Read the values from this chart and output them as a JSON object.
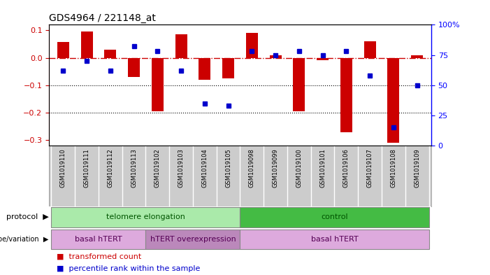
{
  "title": "GDS4964 / 221148_at",
  "samples": [
    "GSM1019110",
    "GSM1019111",
    "GSM1019112",
    "GSM1019113",
    "GSM1019102",
    "GSM1019103",
    "GSM1019104",
    "GSM1019105",
    "GSM1019098",
    "GSM1019099",
    "GSM1019100",
    "GSM1019101",
    "GSM1019106",
    "GSM1019107",
    "GSM1019108",
    "GSM1019109"
  ],
  "bar_values": [
    0.058,
    0.095,
    0.03,
    -0.07,
    -0.195,
    0.085,
    -0.08,
    -0.075,
    0.09,
    0.01,
    -0.195,
    -0.01,
    -0.27,
    0.06,
    -0.31,
    0.01
  ],
  "dot_values": [
    62,
    70,
    62,
    82,
    78,
    62,
    35,
    33,
    78,
    75,
    78,
    75,
    78,
    58,
    15,
    50
  ],
  "ylim_left": [
    -0.32,
    0.12
  ],
  "ylim_right": [
    0,
    100
  ],
  "right_ticks": [
    0,
    25,
    50,
    75,
    100
  ],
  "right_tick_labels": [
    "0",
    "25",
    "50",
    "75",
    "100%"
  ],
  "left_ticks": [
    -0.3,
    -0.2,
    -0.1,
    0.0,
    0.1
  ],
  "bar_color": "#cc0000",
  "dot_color": "#0000cc",
  "protocol_labels": [
    "telomere elongation",
    "control"
  ],
  "protocol_ranges": [
    0,
    8,
    16
  ],
  "protocol_bg": "#aaeaaa",
  "protocol_bg2": "#44bb44",
  "genotype_labels": [
    "basal hTERT",
    "hTERT overexpression",
    "basal hTERT"
  ],
  "genotype_ranges": [
    0,
    4,
    8,
    16
  ],
  "genotype_bg1": "#ddaadd",
  "genotype_bg2": "#bb88bb",
  "zero_line_color": "#cc0000",
  "dotted_line_color": "#000000",
  "sample_bg": "#cccccc"
}
